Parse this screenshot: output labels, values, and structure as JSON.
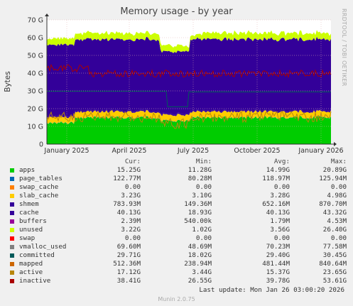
{
  "chart_data": {
    "type": "area",
    "title": "Memory usage - by year",
    "ylabel": "Bytes",
    "ylim": [
      0,
      70
    ],
    "y_unit": "G",
    "yticks": [
      "0",
      "10 G",
      "20 G",
      "30 G",
      "40 G",
      "50 G",
      "60 G",
      "70 G"
    ],
    "xticks": [
      "January 2025",
      "April 2025",
      "July 2025",
      "October 2025",
      "January 2026"
    ],
    "grid": true,
    "stack_order": [
      "apps",
      "page_tables",
      "swap_cache",
      "slab_cache",
      "shmem",
      "cache",
      "buffers",
      "unused"
    ],
    "stacked_average_G": {
      "apps": 14.99,
      "page_tables": 0.12,
      "swap_cache": 0,
      "slab_cache": 3.28,
      "shmem": 0.65,
      "cache": 40.13,
      "buffers": 0.0018,
      "unused": 3.56
    },
    "line_series_average_G": {
      "committed": 29.4,
      "active": 15.37,
      "inactive": 39.78,
      "mapped": 0.48,
      "vmalloc_used": 0.07,
      "swap": 0
    }
  },
  "rrdtool_label": "RRDTOOL / TOBI OETIKER",
  "legend": {
    "headers": [
      "Cur:",
      "Min:",
      "Avg:",
      "Max:"
    ],
    "rows": [
      {
        "name": "apps",
        "color": "#00cc00",
        "cur": "15.25G",
        "min": "11.28G",
        "avg": "14.99G",
        "max": "20.89G"
      },
      {
        "name": "page_tables",
        "color": "#0066b3",
        "cur": "122.77M",
        "min": "80.28M",
        "avg": "118.97M",
        "max": "125.94M"
      },
      {
        "name": "swap_cache",
        "color": "#ff8000",
        "cur": "0.00",
        "min": "0.00",
        "avg": "0.00",
        "max": "0.00"
      },
      {
        "name": "slab_cache",
        "color": "#ffcc00",
        "cur": "3.23G",
        "min": "3.10G",
        "avg": "3.28G",
        "max": "4.98G"
      },
      {
        "name": "shmem",
        "color": "#330099",
        "cur": "783.93M",
        "min": "149.36M",
        "avg": "652.16M",
        "max": "870.70M"
      },
      {
        "name": "cache",
        "color": "#330099",
        "cur": "40.13G",
        "min": "18.93G",
        "avg": "40.13G",
        "max": "43.32G"
      },
      {
        "name": "buffers",
        "color": "#990099",
        "cur": "2.39M",
        "min": "540.00k",
        "avg": "1.79M",
        "max": "4.53M"
      },
      {
        "name": "unused",
        "color": "#ccff00",
        "cur": "3.22G",
        "min": "1.02G",
        "avg": "3.56G",
        "max": "26.40G"
      },
      {
        "name": "swap",
        "color": "#ff0000",
        "cur": "0.00",
        "min": "0.00",
        "avg": "0.00",
        "max": "0.00"
      },
      {
        "name": "vmalloc_used",
        "color": "#808080",
        "cur": "69.60M",
        "min": "48.69M",
        "avg": "70.23M",
        "max": "77.58M"
      },
      {
        "name": "committed",
        "color": "#005a5a",
        "cur": "29.71G",
        "min": "18.02G",
        "avg": "29.40G",
        "max": "30.45G"
      },
      {
        "name": "mapped",
        "color": "#cc6600",
        "cur": "512.36M",
        "min": "238.94M",
        "avg": "481.44M",
        "max": "840.64M"
      },
      {
        "name": "active",
        "color": "#b8860b",
        "cur": "17.12G",
        "min": "3.44G",
        "avg": "15.37G",
        "max": "23.65G"
      },
      {
        "name": "inactive",
        "color": "#aa0000",
        "cur": "38.41G",
        "min": "26.55G",
        "avg": "39.78G",
        "max": "53.61G"
      }
    ]
  },
  "last_update": "Last update: Mon Jan 26 03:00:20 2026",
  "footer": "Munin 2.0.75"
}
